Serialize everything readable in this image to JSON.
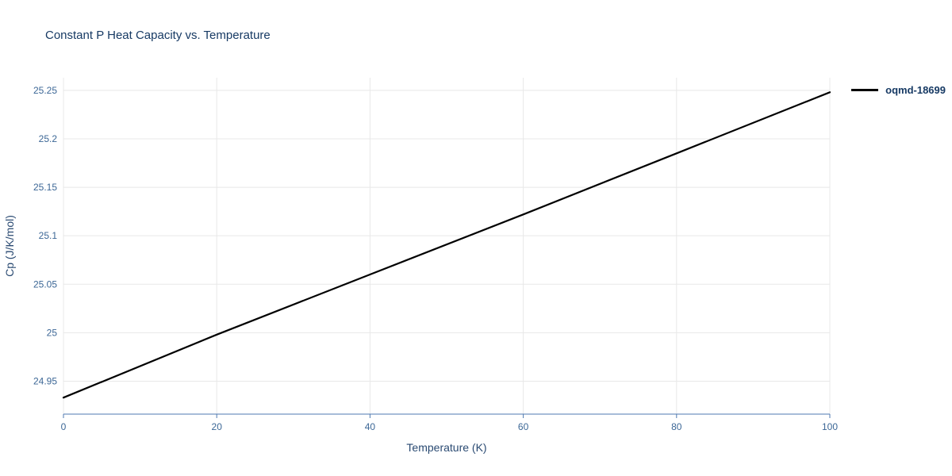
{
  "chart_data": {
    "type": "line",
    "title": "Constant P Heat Capacity vs. Temperature",
    "xlabel": "Temperature (K)",
    "ylabel": "Cp (J/K/mol)",
    "x": [
      0,
      20,
      40,
      60,
      80,
      100
    ],
    "series": [
      {
        "name": "oqmd-18699",
        "color": "#000000",
        "values": [
          24.933,
          24.998,
          25.06,
          25.122,
          25.185,
          25.248
        ]
      }
    ],
    "xlim": [
      0,
      100
    ],
    "ylim": [
      24.916,
      25.263
    ],
    "x_ticks": [
      0,
      20,
      40,
      60,
      80,
      100
    ],
    "x_tick_labels": [
      "0",
      "20",
      "40",
      "60",
      "80",
      "100"
    ],
    "y_ticks": [
      24.95,
      25,
      25.05,
      25.1,
      25.15,
      25.2,
      25.25
    ],
    "y_tick_labels": [
      "24.95",
      "25",
      "25.05",
      "25.1",
      "25.15",
      "25.2",
      "25.25"
    ],
    "grid": true,
    "legend_position": "top-right"
  },
  "colors": {
    "line": "#000000",
    "grid": "#e8e8e8",
    "axis_line": "#4f7ab0",
    "tick_label": "#3c6796",
    "title_text": "#173a64"
  }
}
